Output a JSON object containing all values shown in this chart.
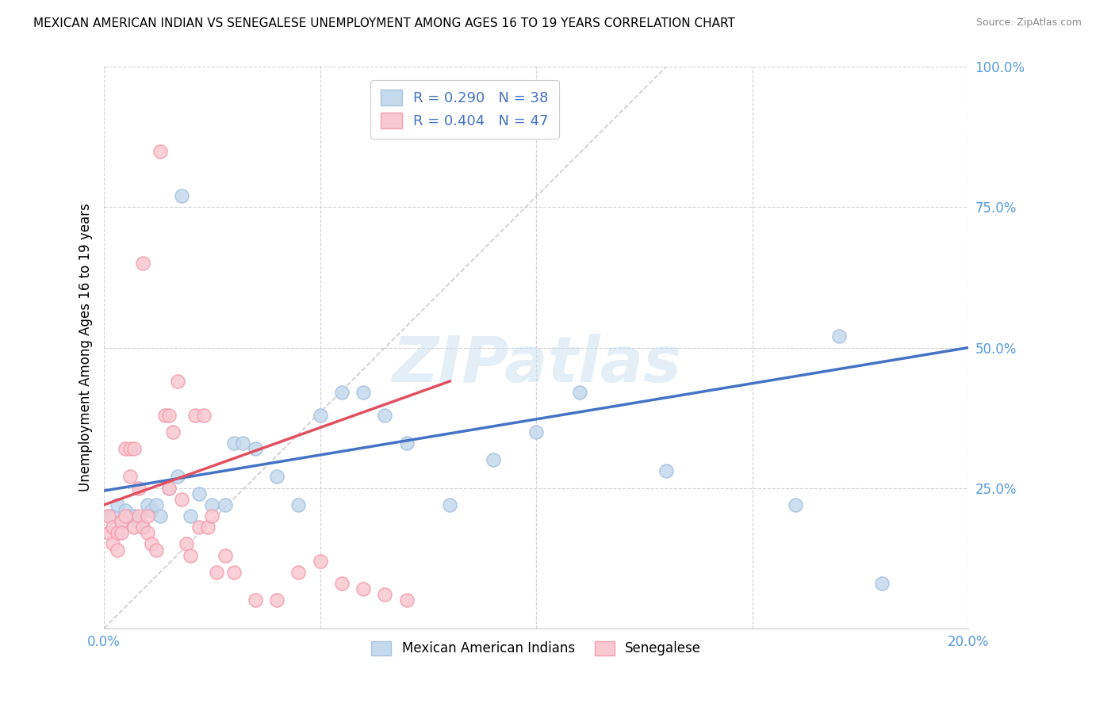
{
  "title": "MEXICAN AMERICAN INDIAN VS SENEGALESE UNEMPLOYMENT AMONG AGES 16 TO 19 YEARS CORRELATION CHART",
  "source": "Source: ZipAtlas.com",
  "ylabel": "Unemployment Among Ages 16 to 19 years",
  "x_min": 0.0,
  "x_max": 0.2,
  "y_min": 0.0,
  "y_max": 1.0,
  "blue_color": "#a8c4e0",
  "blue_fill": "#c5d9ed",
  "pink_color": "#f4a0b0",
  "pink_fill": "#f9c8d0",
  "line_blue": "#4472c4",
  "line_pink": "#e05060",
  "R_blue": 0.29,
  "N_blue": 38,
  "R_pink": 0.404,
  "N_pink": 47,
  "legend_label_blue": "Mexican American Indians",
  "legend_label_pink": "Senegalese",
  "watermark": "ZIPatlas",
  "blue_scatter_x": [
    0.001,
    0.002,
    0.003,
    0.004,
    0.005,
    0.006,
    0.007,
    0.008,
    0.009,
    0.01,
    0.011,
    0.012,
    0.013,
    0.015,
    0.017,
    0.018,
    0.02,
    0.022,
    0.025,
    0.028,
    0.03,
    0.032,
    0.035,
    0.04,
    0.045,
    0.05,
    0.055,
    0.06,
    0.065,
    0.07,
    0.08,
    0.09,
    0.1,
    0.11,
    0.13,
    0.16,
    0.17,
    0.18
  ],
  "blue_scatter_y": [
    0.2,
    0.2,
    0.22,
    0.19,
    0.21,
    0.2,
    0.2,
    0.19,
    0.18,
    0.22,
    0.21,
    0.22,
    0.2,
    0.25,
    0.27,
    0.77,
    0.2,
    0.24,
    0.22,
    0.22,
    0.33,
    0.33,
    0.32,
    0.27,
    0.22,
    0.38,
    0.42,
    0.42,
    0.38,
    0.33,
    0.22,
    0.3,
    0.35,
    0.42,
    0.28,
    0.22,
    0.52,
    0.08
  ],
  "pink_scatter_x": [
    0.001,
    0.001,
    0.002,
    0.002,
    0.003,
    0.003,
    0.004,
    0.004,
    0.005,
    0.005,
    0.006,
    0.006,
    0.007,
    0.007,
    0.008,
    0.008,
    0.009,
    0.009,
    0.01,
    0.01,
    0.011,
    0.012,
    0.013,
    0.014,
    0.015,
    0.015,
    0.016,
    0.017,
    0.018,
    0.019,
    0.02,
    0.021,
    0.022,
    0.023,
    0.024,
    0.025,
    0.026,
    0.028,
    0.03,
    0.035,
    0.04,
    0.045,
    0.05,
    0.055,
    0.06,
    0.065,
    0.07
  ],
  "pink_scatter_y": [
    0.2,
    0.17,
    0.18,
    0.15,
    0.17,
    0.14,
    0.19,
    0.17,
    0.2,
    0.32,
    0.27,
    0.32,
    0.18,
    0.32,
    0.25,
    0.2,
    0.18,
    0.65,
    0.2,
    0.17,
    0.15,
    0.14,
    0.85,
    0.38,
    0.38,
    0.25,
    0.35,
    0.44,
    0.23,
    0.15,
    0.13,
    0.38,
    0.18,
    0.38,
    0.18,
    0.2,
    0.1,
    0.13,
    0.1,
    0.05,
    0.05,
    0.1,
    0.12,
    0.08,
    0.07,
    0.06,
    0.05
  ],
  "blue_line_x0": 0.0,
  "blue_line_y0": 0.245,
  "blue_line_x1": 0.2,
  "blue_line_y1": 0.5,
  "pink_line_x0": 0.0,
  "pink_line_y0": 0.22,
  "pink_line_x1": 0.08,
  "pink_line_y1": 0.44
}
